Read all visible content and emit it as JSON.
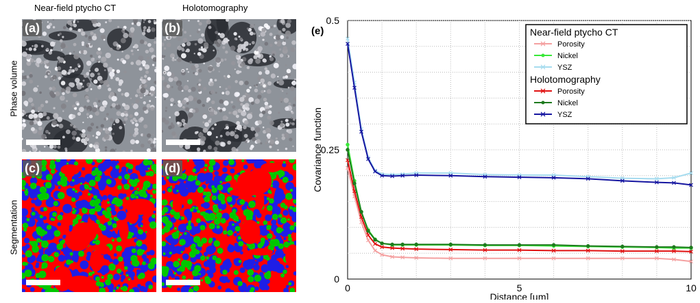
{
  "images": {
    "col_titles": [
      "Near-field ptycho CT",
      "Holotomography"
    ],
    "row_labels": [
      "Phase volume",
      "Segmentation"
    ],
    "panels": [
      "(a)",
      "(b)",
      "(c)",
      "(d)"
    ]
  },
  "colors": {
    "pore": "#ff0000",
    "nickel": "#00c800",
    "ysz": "#1e1ee6"
  },
  "chart_data": {
    "type": "line",
    "panel_label": "(e)",
    "xlabel": "Distance [µm]",
    "ylabel": "Covariance function",
    "xlim": [
      0,
      10
    ],
    "ylim": [
      0,
      0.5
    ],
    "xticks": [
      0,
      5,
      10
    ],
    "yticks": [
      {
        "v": 0,
        "label": "0"
      },
      {
        "v": 0.25,
        "label": "0.25"
      },
      {
        "v": 0.5,
        "label": "0.5"
      }
    ],
    "grid": true,
    "legend_position": "top-right",
    "legend": [
      {
        "group": "Near-field ptycho CT",
        "entries": [
          "Porosity",
          "Nickel",
          "YSZ"
        ]
      },
      {
        "group": "Holotomography",
        "entries": [
          "Porosity",
          "Nickel",
          "YSZ"
        ]
      }
    ],
    "series": [
      {
        "group": "Near-field ptycho CT",
        "name": "Porosity",
        "color": "#f4a0a0",
        "marker": "x",
        "x": [
          0,
          0.2,
          0.4,
          0.6,
          0.8,
          1.0,
          1.3,
          1.6,
          2,
          3,
          4,
          5,
          6,
          7,
          8,
          9,
          9.5,
          10
        ],
        "y": [
          0.215,
          0.16,
          0.11,
          0.075,
          0.055,
          0.047,
          0.043,
          0.042,
          0.041,
          0.04,
          0.04,
          0.04,
          0.04,
          0.04,
          0.04,
          0.04,
          0.038,
          0.034
        ]
      },
      {
        "group": "Near-field ptycho CT",
        "name": "Nickel",
        "color": "#38e838",
        "marker": "o",
        "x": [
          0,
          0.2,
          0.4,
          0.6,
          0.8,
          1.0,
          1.3,
          1.6,
          2,
          3,
          4,
          5,
          6,
          7,
          8,
          9,
          9.5,
          10
        ],
        "y": [
          0.26,
          0.19,
          0.13,
          0.095,
          0.077,
          0.069,
          0.066,
          0.066,
          0.066,
          0.066,
          0.065,
          0.065,
          0.064,
          0.063,
          0.062,
          0.061,
          0.06,
          0.06
        ]
      },
      {
        "group": "Near-field ptycho CT",
        "name": "YSZ",
        "color": "#a6dcef",
        "marker": "x",
        "x": [
          0,
          0.2,
          0.4,
          0.6,
          0.8,
          1.0,
          1.3,
          1.6,
          2,
          3,
          4,
          5,
          6,
          7,
          8,
          9,
          9.5,
          10
        ],
        "y": [
          0.465,
          0.38,
          0.29,
          0.235,
          0.21,
          0.203,
          0.202,
          0.203,
          0.205,
          0.205,
          0.202,
          0.201,
          0.201,
          0.198,
          0.195,
          0.194,
          0.196,
          0.205
        ]
      },
      {
        "group": "Holotomography",
        "name": "Porosity",
        "color": "#e01010",
        "marker": "x",
        "x": [
          0,
          0.2,
          0.4,
          0.6,
          0.8,
          1.0,
          1.3,
          1.6,
          2,
          3,
          4,
          5,
          6,
          7,
          8,
          9,
          9.5,
          10
        ],
        "y": [
          0.23,
          0.17,
          0.12,
          0.085,
          0.068,
          0.062,
          0.06,
          0.059,
          0.058,
          0.057,
          0.056,
          0.056,
          0.055,
          0.055,
          0.054,
          0.054,
          0.054,
          0.053
        ]
      },
      {
        "group": "Holotomography",
        "name": "Nickel",
        "color": "#1e7a1e",
        "marker": "o",
        "x": [
          0,
          0.2,
          0.4,
          0.6,
          0.8,
          1.0,
          1.3,
          1.6,
          2,
          3,
          4,
          5,
          6,
          7,
          8,
          9,
          9.5,
          10
        ],
        "y": [
          0.25,
          0.185,
          0.13,
          0.093,
          0.076,
          0.069,
          0.067,
          0.067,
          0.067,
          0.067,
          0.066,
          0.066,
          0.066,
          0.064,
          0.063,
          0.062,
          0.062,
          0.061
        ]
      },
      {
        "group": "Holotomography",
        "name": "YSZ",
        "color": "#1515a0",
        "marker": "+",
        "x": [
          0,
          0.2,
          0.4,
          0.6,
          0.8,
          1.0,
          1.3,
          1.6,
          2,
          3,
          4,
          5,
          6,
          7,
          8,
          9,
          9.5,
          10
        ],
        "y": [
          0.455,
          0.37,
          0.285,
          0.232,
          0.208,
          0.2,
          0.199,
          0.2,
          0.201,
          0.2,
          0.198,
          0.197,
          0.196,
          0.194,
          0.19,
          0.187,
          0.186,
          0.182
        ]
      }
    ]
  }
}
